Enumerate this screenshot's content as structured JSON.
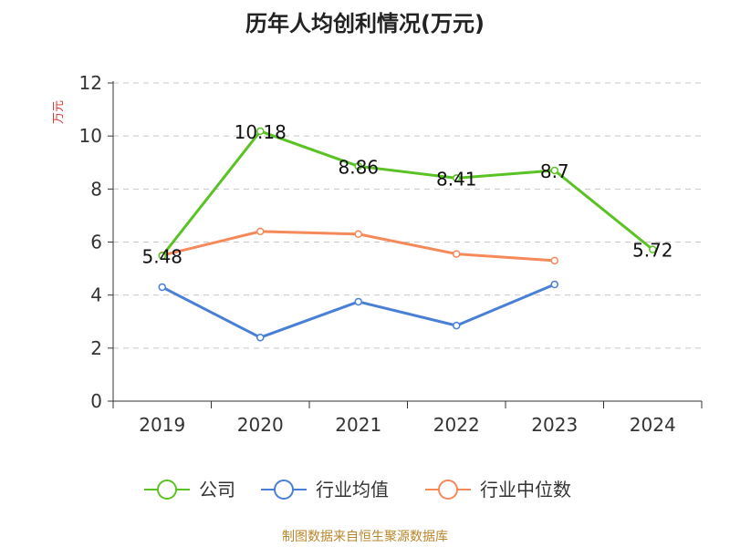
{
  "title": "历年人均创利情况(万元)",
  "footer": "制图数据来自恒生聚源数据库",
  "colors": {
    "footer_text": "#b8862b",
    "ylabel_text": "#e03030",
    "axis": "#333333",
    "grid": "#c8c8c8"
  },
  "chart_data": {
    "type": "line",
    "title": "历年人均创利情况(万元)",
    "xlabel": "",
    "ylabel": "万元",
    "ylim": [
      0,
      12
    ],
    "yticks": [
      0,
      2,
      4,
      6,
      8,
      10,
      12
    ],
    "categories": [
      "2019",
      "2020",
      "2021",
      "2022",
      "2023",
      "2024"
    ],
    "grid": true,
    "legend_position": "bottom",
    "series": [
      {
        "name": "公司",
        "color": "#5bc225",
        "values": [
          5.48,
          10.18,
          8.86,
          8.41,
          8.7,
          5.72
        ],
        "labels": [
          "5.48",
          "10.18",
          "8.86",
          "8.41",
          "8.7",
          "5.72"
        ],
        "show_labels": true
      },
      {
        "name": "行业均值",
        "color": "#4a7fd6",
        "values": [
          4.3,
          2.4,
          3.75,
          2.85,
          4.4,
          null
        ],
        "show_labels": false
      },
      {
        "name": "行业中位数",
        "color": "#f5895a",
        "values": [
          5.5,
          6.4,
          6.3,
          5.55,
          5.3,
          null
        ],
        "show_labels": false
      }
    ]
  }
}
